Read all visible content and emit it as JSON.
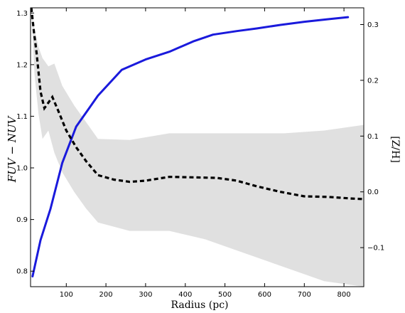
{
  "chart_data": {
    "type": "line",
    "title": "",
    "xlabel": "Radius (pc)",
    "ylabel_left": "FUV − NUV",
    "ylabel_right": "[Z/H]",
    "xlim": [
      10,
      850
    ],
    "ylim_left": [
      0.77,
      1.31
    ],
    "ylim_right": [
      -0.17,
      0.33
    ],
    "x_ticks": [
      100,
      200,
      300,
      400,
      500,
      600,
      700,
      800
    ],
    "x_tick_labels": [
      "100",
      "200",
      "300",
      "400",
      "500",
      "600",
      "700",
      "800"
    ],
    "y_left_ticks": [
      0.8,
      0.9,
      1.0,
      1.1,
      1.2,
      1.3
    ],
    "y_left_tick_labels": [
      "0.8",
      "0.9",
      "1.0",
      "1.1",
      "1.2",
      "1.3"
    ],
    "y_right_ticks": [
      -0.1,
      0.0,
      0.1,
      0.2,
      0.3
    ],
    "y_right_tick_labels": [
      "−0.1",
      "0.0",
      "0.1",
      "0.2",
      "0.3"
    ],
    "grid": false,
    "series": [
      {
        "axis": "left",
        "style": "solid",
        "color": "#1a1adc",
        "x": [
          15,
          35,
          60,
          90,
          125,
          180,
          240,
          300,
          360,
          420,
          470,
          530,
          580,
          640,
          700,
          760,
          810
        ],
        "y": [
          0.79,
          0.86,
          0.92,
          1.01,
          1.08,
          1.14,
          1.19,
          1.21,
          1.225,
          1.245,
          1.258,
          1.265,
          1.27,
          1.277,
          1.283,
          1.288,
          1.292
        ]
      },
      {
        "axis": "right",
        "style": "dashed",
        "color": "#000000",
        "x": [
          12,
          18,
          25,
          35,
          45,
          55,
          65,
          80,
          100,
          125,
          150,
          180,
          220,
          260,
          300,
          360,
          420,
          480,
          530,
          580,
          640,
          700,
          760,
          820,
          850
        ],
        "y": [
          0.33,
          0.29,
          0.25,
          0.18,
          0.15,
          0.16,
          0.17,
          0.145,
          0.11,
          0.08,
          0.055,
          0.03,
          0.022,
          0.018,
          0.02,
          0.027,
          0.026,
          0.025,
          0.02,
          0.01,
          0.0,
          -0.008,
          -0.009,
          -0.012,
          -0.013
        ]
      }
    ],
    "shaded_band": {
      "axis": "right",
      "color": "#e0e0e0",
      "x": [
        12,
        20,
        30,
        40,
        55,
        70,
        90,
        120,
        150,
        180,
        260,
        360,
        450,
        550,
        650,
        750,
        850
      ],
      "upper": [
        0.33,
        0.29,
        0.26,
        0.24,
        0.225,
        0.23,
        0.19,
        0.155,
        0.125,
        0.095,
        0.093,
        0.105,
        0.105,
        0.105,
        0.105,
        0.11,
        0.12
      ],
      "lower": [
        0.33,
        0.21,
        0.14,
        0.095,
        0.11,
        0.07,
        0.035,
        0.0,
        -0.03,
        -0.055,
        -0.07,
        -0.07,
        -0.085,
        -0.11,
        -0.135,
        -0.16,
        -0.17
      ]
    }
  }
}
